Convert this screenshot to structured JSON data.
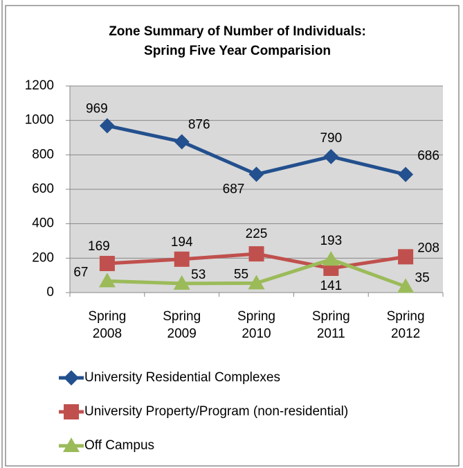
{
  "chart_data": {
    "type": "line",
    "title": "Zone Summary of Number of Individuals: Spring Five Year Comparision",
    "categories": [
      "Spring 2008",
      "Spring 2009",
      "Spring 2010",
      "Spring 2011",
      "Spring 2012"
    ],
    "series": [
      {
        "name": "University Residential Complexes",
        "color": "#23508e",
        "marker": "diamond",
        "values": [
          969,
          876,
          687,
          790,
          686
        ]
      },
      {
        "name": "University Property/Program (non-residential)",
        "color": "#c0504d",
        "marker": "square",
        "values": [
          169,
          194,
          225,
          141,
          208
        ]
      },
      {
        "name": "Off Campus",
        "color": "#9bbb59",
        "marker": "triangle",
        "values": [
          67,
          53,
          55,
          193,
          35
        ]
      }
    ],
    "ylim": [
      0,
      1200
    ],
    "yticks": [
      0,
      200,
      400,
      600,
      800,
      1000,
      1200
    ],
    "grid": true,
    "legend": "bottom"
  }
}
